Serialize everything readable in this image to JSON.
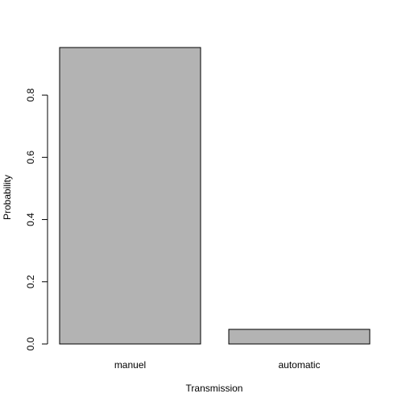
{
  "chart_data": {
    "type": "bar",
    "categories": [
      "manuel",
      "automatic"
    ],
    "values": [
      0.953,
      0.047
    ],
    "title": "",
    "xlabel": "Transmission",
    "ylabel": "Probability",
    "ylim": [
      0,
      0.953
    ],
    "yticks": [
      "0.0",
      "0.2",
      "0.4",
      "0.6",
      "0.8"
    ],
    "bar_color": "#b3b3b3",
    "grid": false,
    "legend": "none"
  }
}
